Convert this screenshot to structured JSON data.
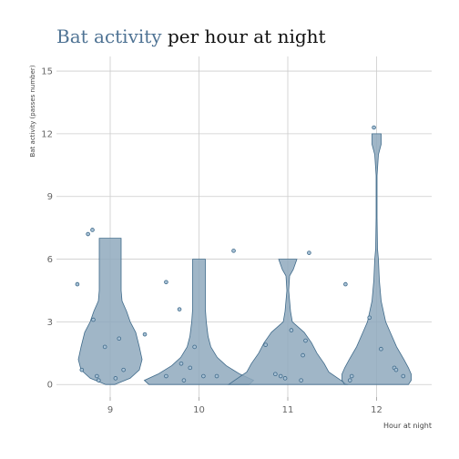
{
  "chart_data": {
    "type": "violin",
    "title_parts": [
      {
        "text": "Bat activity",
        "color": "#4f7394"
      },
      {
        "text": " per hour at night",
        "color": "#111111"
      }
    ],
    "xlabel": "Hour at night",
    "ylabel": "Bat activity (passes number)",
    "categories": [
      "9",
      "10",
      "11",
      "12"
    ],
    "y_ticks": [
      0,
      3,
      6,
      9,
      12,
      15
    ],
    "ylim": [
      -0.6,
      15.7
    ],
    "grid": true,
    "colors": {
      "violin_fill": "#8fa9bd",
      "violin_stroke": "#3f6a8a",
      "point_fill": "#a9c2d6",
      "point_stroke": "#3f6a8a",
      "grid": "#cccccc",
      "axis_text": "#666666"
    },
    "violins": [
      {
        "category": "9",
        "max": 7,
        "profile": [
          [
            0,
            0.05
          ],
          [
            0.3,
            0.22
          ],
          [
            0.7,
            0.32
          ],
          [
            1.2,
            0.35
          ],
          [
            1.8,
            0.32
          ],
          [
            2.5,
            0.28
          ],
          [
            3.0,
            0.22
          ],
          [
            3.5,
            0.18
          ],
          [
            4.0,
            0.13
          ],
          [
            4.5,
            0.12
          ],
          [
            5.0,
            0.12
          ],
          [
            5.5,
            0.12
          ],
          [
            6.0,
            0.12
          ],
          [
            7.0,
            0.12
          ]
        ]
      },
      {
        "category": "10",
        "max": 6,
        "profile": [
          [
            0,
            0.55
          ],
          [
            0.2,
            0.6
          ],
          [
            0.5,
            0.45
          ],
          [
            0.9,
            0.3
          ],
          [
            1.3,
            0.2
          ],
          [
            1.8,
            0.13
          ],
          [
            2.3,
            0.1
          ],
          [
            3.0,
            0.08
          ],
          [
            3.6,
            0.07
          ],
          [
            4.2,
            0.07
          ],
          [
            5.0,
            0.07
          ],
          [
            6.0,
            0.07
          ]
        ]
      },
      {
        "category": "11",
        "max": 6,
        "profile": [
          [
            0,
            0.65
          ],
          [
            0.3,
            0.55
          ],
          [
            0.6,
            0.45
          ],
          [
            1.0,
            0.4
          ],
          [
            1.5,
            0.32
          ],
          [
            2.0,
            0.26
          ],
          [
            2.5,
            0.18
          ],
          [
            3.0,
            0.05
          ],
          [
            3.5,
            0.03
          ],
          [
            4.5,
            0.01
          ],
          [
            5.2,
            0.02
          ],
          [
            5.5,
            0.06
          ],
          [
            6.0,
            0.1
          ]
        ]
      },
      {
        "category": "12",
        "max": 12,
        "profile": [
          [
            0,
            0.35
          ],
          [
            0.2,
            0.38
          ],
          [
            0.5,
            0.38
          ],
          [
            0.8,
            0.35
          ],
          [
            1.2,
            0.3
          ],
          [
            1.8,
            0.22
          ],
          [
            2.5,
            0.15
          ],
          [
            3.0,
            0.1
          ],
          [
            4.0,
            0.05
          ],
          [
            5.0,
            0.03
          ],
          [
            6.0,
            0.02
          ],
          [
            6.5,
            0.01
          ],
          [
            8.0,
            0.005
          ],
          [
            10.0,
            0.005
          ],
          [
            11.0,
            0.02
          ],
          [
            11.5,
            0.05
          ],
          [
            12.0,
            0.05
          ]
        ]
      }
    ],
    "points": [
      {
        "category": "9",
        "points": [
          [
            -0.37,
            4.8
          ],
          [
            -0.25,
            7.2
          ],
          [
            -0.2,
            7.4
          ],
          [
            -0.19,
            3.1
          ],
          [
            -0.32,
            0.7
          ],
          [
            -0.15,
            0.4
          ],
          [
            -0.13,
            0.2
          ],
          [
            -0.06,
            1.8
          ],
          [
            0.06,
            0.3
          ],
          [
            0.1,
            2.2
          ],
          [
            0.15,
            0.7
          ],
          [
            0.39,
            2.4
          ]
        ]
      },
      {
        "category": "10",
        "points": [
          [
            -0.37,
            4.9
          ],
          [
            -0.37,
            0.4
          ],
          [
            -0.22,
            3.6
          ],
          [
            -0.2,
            1.0
          ],
          [
            -0.17,
            0.2
          ],
          [
            -0.1,
            0.8
          ],
          [
            -0.05,
            1.8
          ],
          [
            0.05,
            0.4
          ],
          [
            0.2,
            0.4
          ],
          [
            0.39,
            6.4
          ]
        ]
      },
      {
        "category": "11",
        "points": [
          [
            -0.25,
            1.9
          ],
          [
            -0.14,
            0.5
          ],
          [
            -0.08,
            0.4
          ],
          [
            -0.03,
            0.3
          ],
          [
            0.04,
            2.6
          ],
          [
            0.15,
            0.2
          ],
          [
            0.17,
            1.4
          ],
          [
            0.2,
            2.1
          ],
          [
            0.24,
            6.3
          ]
        ]
      },
      {
        "category": "12",
        "points": [
          [
            -0.35,
            4.8
          ],
          [
            -0.3,
            0.2
          ],
          [
            -0.28,
            0.4
          ],
          [
            -0.08,
            3.2
          ],
          [
            -0.03,
            12.3
          ],
          [
            0.05,
            1.7
          ],
          [
            0.2,
            0.8
          ],
          [
            0.22,
            0.7
          ],
          [
            0.3,
            0.4
          ]
        ]
      }
    ]
  }
}
